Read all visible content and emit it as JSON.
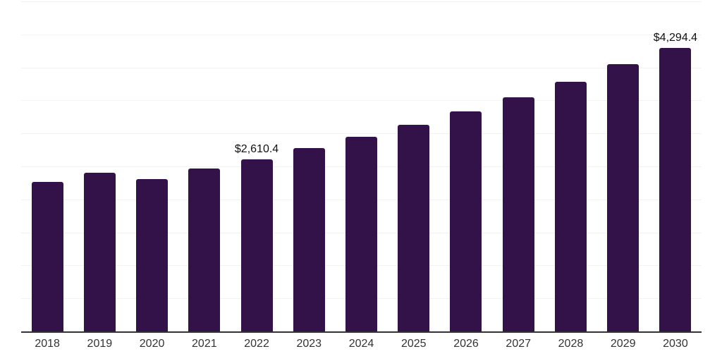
{
  "chart_data": {
    "type": "bar",
    "title": "",
    "xlabel": "",
    "ylabel": "",
    "categories": [
      "2018",
      "2019",
      "2020",
      "2021",
      "2022",
      "2023",
      "2024",
      "2025",
      "2026",
      "2027",
      "2028",
      "2029",
      "2030"
    ],
    "values": [
      2260,
      2405,
      2310,
      2470,
      2610.4,
      2780,
      2945,
      3130,
      3330,
      3545,
      3780,
      4045,
      4294.4
    ],
    "data_labels": {
      "2022": "$2,610.4",
      "2030": "$4,294.4"
    },
    "ylim": [
      0,
      5000
    ],
    "grid_step": 500,
    "grid": true,
    "legend": false,
    "y_tick_labels_visible": false
  },
  "colors": {
    "bar": "#331249",
    "axis": "#333333",
    "gridline": "#f2f2f2",
    "data_label": "#111111",
    "tick_label": "#333333",
    "background": "#ffffff"
  }
}
